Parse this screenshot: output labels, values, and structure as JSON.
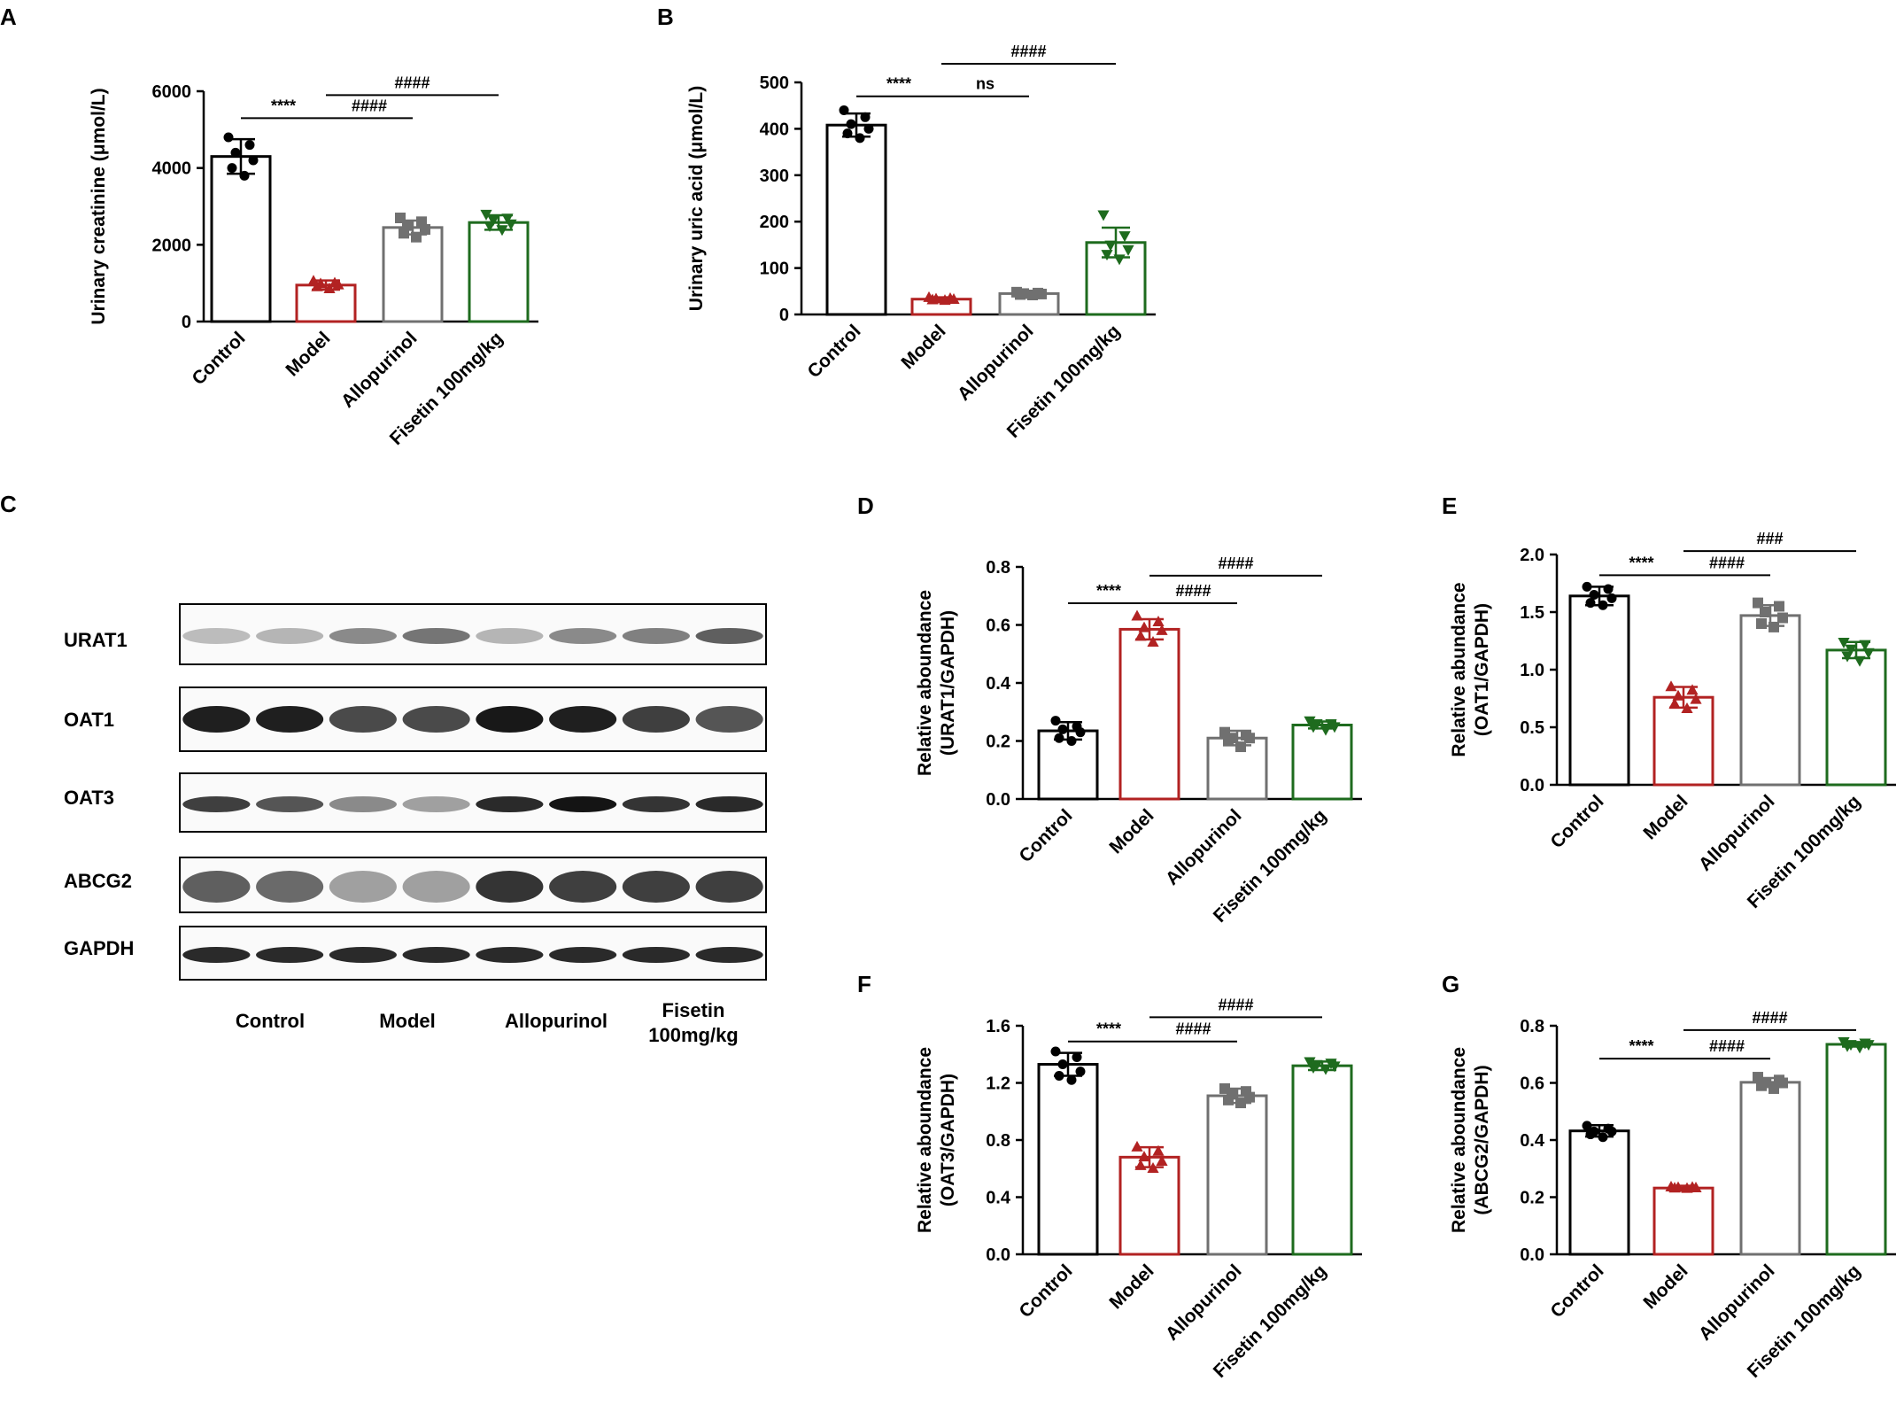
{
  "colors": {
    "Control": "#000000",
    "Model": "#b22222",
    "Allopurinol": "#707070",
    "Fisetin 100mg/kg": "#1e6b1e"
  },
  "panel_labels": [
    "A",
    "B",
    "C",
    "D",
    "E",
    "F",
    "G"
  ],
  "blot": {
    "label": "C",
    "proteins": [
      "URAT1",
      "OAT1",
      "OAT3",
      "ABCG2",
      "GAPDH"
    ],
    "groups": [
      "Control",
      "Model",
      "Allopurinol",
      "Fisetin\n100mg/kg"
    ],
    "band_intensity": [
      [
        0.22,
        0.25,
        0.45,
        0.55,
        0.25,
        0.45,
        0.5,
        0.65
      ],
      [
        0.95,
        0.95,
        0.75,
        0.75,
        0.98,
        0.95,
        0.8,
        0.7
      ],
      [
        0.8,
        0.7,
        0.45,
        0.35,
        0.9,
        1.0,
        0.85,
        0.9
      ],
      [
        0.65,
        0.6,
        0.35,
        0.35,
        0.85,
        0.8,
        0.8,
        0.8
      ],
      [
        0.9,
        0.9,
        0.9,
        0.9,
        0.9,
        0.9,
        0.9,
        0.9
      ]
    ]
  },
  "chart_data": [
    {
      "label": "A",
      "type": "bar",
      "categories": [
        "Control",
        "Model",
        "Allopurinol",
        "Fisetin 100mg/kg"
      ],
      "values": [
        4300,
        950,
        2450,
        2580
      ],
      "errors": [
        450,
        120,
        180,
        190
      ],
      "points": [
        [
          4800,
          4600,
          4400,
          4200,
          4000,
          3800
        ],
        [
          1050,
          1000,
          980,
          950,
          900,
          850
        ],
        [
          2700,
          2600,
          2500,
          2400,
          2300,
          2200
        ],
        [
          2800,
          2700,
          2650,
          2550,
          2500,
          2400
        ]
      ],
      "ylabel": "Urinary creatinine (μmol/L)",
      "ylim": [
        0,
        6000
      ],
      "yticks": [
        0,
        2000,
        4000,
        6000
      ],
      "brackets": [
        {
          "from": 0,
          "to": 1,
          "text": "****",
          "y": 5300
        },
        {
          "from": 1,
          "to": 2,
          "text": "####",
          "y": 5300
        },
        {
          "from": 1,
          "to": 3,
          "text": "####",
          "y": 5900
        }
      ]
    },
    {
      "label": "B",
      "type": "bar",
      "categories": [
        "Control",
        "Model",
        "Allopurinol",
        "Fisetin 100mg/kg"
      ],
      "values": [
        408,
        33,
        45,
        155
      ],
      "errors": [
        25,
        4,
        5,
        32
      ],
      "points": [
        [
          440,
          425,
          410,
          400,
          390,
          380
        ],
        [
          36,
          34,
          33,
          32,
          31,
          30
        ],
        [
          48,
          46,
          45,
          44,
          43,
          42
        ],
        [
          215,
          170,
          150,
          140,
          130,
          120
        ]
      ],
      "ylabel": "Urinary uric acid (μmol/L)",
      "ylim": [
        0,
        500
      ],
      "yticks": [
        0,
        100,
        200,
        300,
        400,
        500
      ],
      "brackets": [
        {
          "from": 0,
          "to": 1,
          "text": "****",
          "y": 470
        },
        {
          "from": 1,
          "to": 2,
          "text": "ns",
          "y": 470
        },
        {
          "from": 1,
          "to": 3,
          "text": "####",
          "y": 540
        }
      ]
    },
    {
      "label": "D",
      "type": "bar",
      "categories": [
        "Control",
        "Model",
        "Allopurinol",
        "Fisetin 100mg/kg"
      ],
      "values": [
        0.235,
        0.585,
        0.21,
        0.255
      ],
      "errors": [
        0.03,
        0.035,
        0.025,
        0.012
      ],
      "points": [
        [
          0.27,
          0.25,
          0.24,
          0.23,
          0.21,
          0.2
        ],
        [
          0.63,
          0.61,
          0.59,
          0.58,
          0.56,
          0.54
        ],
        [
          0.23,
          0.22,
          0.21,
          0.21,
          0.2,
          0.18
        ],
        [
          0.27,
          0.26,
          0.26,
          0.25,
          0.25,
          0.24
        ]
      ],
      "ylabel": "Relative aboundance\n(URAT1/GAPDH)",
      "ylim": [
        0,
        0.8
      ],
      "yticks": [
        0,
        0.2,
        0.4,
        0.6,
        0.8
      ],
      "ytick_labels": [
        "0.0",
        "0.2",
        "0.4",
        "0.6",
        "0.8"
      ],
      "brackets": [
        {
          "from": 0,
          "to": 1,
          "text": "****",
          "y": 0.675
        },
        {
          "from": 1,
          "to": 2,
          "text": "####",
          "y": 0.675
        },
        {
          "from": 1,
          "to": 3,
          "text": "####",
          "y": 0.77
        }
      ]
    },
    {
      "label": "E",
      "type": "bar",
      "categories": [
        "Control",
        "Model",
        "Allopurinol",
        "Fisetin 100mg/kg"
      ],
      "values": [
        1.64,
        0.76,
        1.47,
        1.17
      ],
      "errors": [
        0.08,
        0.09,
        0.09,
        0.07
      ],
      "points": [
        [
          1.72,
          1.7,
          1.65,
          1.62,
          1.58,
          1.56
        ],
        [
          0.85,
          0.82,
          0.77,
          0.74,
          0.7,
          0.66
        ],
        [
          1.58,
          1.55,
          1.5,
          1.45,
          1.4,
          1.37
        ],
        [
          1.24,
          1.22,
          1.18,
          1.15,
          1.12,
          1.08
        ]
      ],
      "ylabel": "Relative abundance\n(OAT1/GAPDH)",
      "ylim": [
        0,
        2.0
      ],
      "yticks": [
        0,
        0.5,
        1.0,
        1.5,
        2.0
      ],
      "ytick_labels": [
        "0.0",
        "0.5",
        "1.0",
        "1.5",
        "2.0"
      ],
      "brackets": [
        {
          "from": 0,
          "to": 1,
          "text": "****",
          "y": 1.82
        },
        {
          "from": 1,
          "to": 2,
          "text": "####",
          "y": 1.82
        },
        {
          "from": 1,
          "to": 3,
          "text": "###",
          "y": 2.03
        }
      ]
    },
    {
      "label": "F",
      "type": "bar",
      "categories": [
        "Control",
        "Model",
        "Allopurinol",
        "Fisetin 100mg/kg"
      ],
      "values": [
        1.33,
        0.68,
        1.11,
        1.32
      ],
      "errors": [
        0.08,
        0.07,
        0.05,
        0.03
      ],
      "points": [
        [
          1.42,
          1.38,
          1.33,
          1.28,
          1.25,
          1.22
        ],
        [
          0.75,
          0.72,
          0.68,
          0.65,
          0.62,
          0.6
        ],
        [
          1.16,
          1.14,
          1.12,
          1.1,
          1.08,
          1.06
        ],
        [
          1.35,
          1.34,
          1.33,
          1.32,
          1.31,
          1.3
        ]
      ],
      "ylabel": "Relative aboundance\n(OAT3/GAPDH)",
      "ylim": [
        0,
        1.6
      ],
      "yticks": [
        0,
        0.4,
        0.8,
        1.2,
        1.6
      ],
      "ytick_labels": [
        "0.0",
        "0.4",
        "0.8",
        "1.2",
        "1.6"
      ],
      "brackets": [
        {
          "from": 0,
          "to": 1,
          "text": "****",
          "y": 1.49
        },
        {
          "from": 1,
          "to": 2,
          "text": "####",
          "y": 1.49
        },
        {
          "from": 1,
          "to": 3,
          "text": "####",
          "y": 1.66
        }
      ]
    },
    {
      "label": "G",
      "type": "bar",
      "categories": [
        "Control",
        "Model",
        "Allopurinol",
        "Fisetin 100mg/kg"
      ],
      "values": [
        0.432,
        0.232,
        0.602,
        0.735
      ],
      "errors": [
        0.02,
        0.008,
        0.015,
        0.008
      ],
      "points": [
        [
          0.45,
          0.44,
          0.43,
          0.43,
          0.42,
          0.41
        ],
        [
          0.235,
          0.234,
          0.233,
          0.232,
          0.231,
          0.23
        ],
        [
          0.62,
          0.61,
          0.6,
          0.6,
          0.59,
          0.58
        ],
        [
          0.745,
          0.74,
          0.735,
          0.735,
          0.73,
          0.725
        ]
      ],
      "ylabel": "Relative aboundance\n(ABCG2/GAPDH)",
      "ylim": [
        0,
        0.8
      ],
      "yticks": [
        0,
        0.2,
        0.4,
        0.6,
        0.8
      ],
      "ytick_labels": [
        "0.0",
        "0.2",
        "0.4",
        "0.6",
        "0.8"
      ],
      "brackets": [
        {
          "from": 0,
          "to": 1,
          "text": "****",
          "y": 0.685
        },
        {
          "from": 1,
          "to": 2,
          "text": "####",
          "y": 0.685
        },
        {
          "from": 1,
          "to": 3,
          "text": "####",
          "y": 0.785
        }
      ]
    }
  ]
}
